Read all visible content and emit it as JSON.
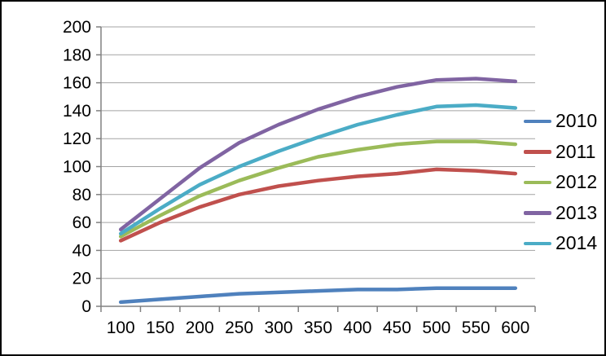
{
  "chart_data": {
    "type": "line",
    "title": "",
    "xlabel": "",
    "ylabel": "",
    "categories": [
      100,
      150,
      200,
      250,
      300,
      350,
      400,
      450,
      500,
      550,
      600
    ],
    "x_tick_labels": [
      "100",
      "150",
      "200",
      "250",
      "300",
      "350",
      "400",
      "450",
      "500",
      "550",
      "600"
    ],
    "y_tick_labels": [
      "0",
      "20",
      "40",
      "60",
      "80",
      "100",
      "120",
      "140",
      "160",
      "180",
      "200"
    ],
    "ylim": [
      0,
      200
    ],
    "y_step": 20,
    "grid": "horizontal",
    "legend_position": "right",
    "series": [
      {
        "name": "2010",
        "color": "#4F81BD",
        "values": [
          3,
          5,
          7,
          9,
          10,
          11,
          12,
          12,
          13,
          13,
          13
        ]
      },
      {
        "name": "2011",
        "color": "#C0504D",
        "values": [
          47,
          60,
          71,
          80,
          86,
          90,
          93,
          95,
          98,
          97,
          95
        ]
      },
      {
        "name": "2012",
        "color": "#9BBB59",
        "values": [
          50,
          65,
          79,
          90,
          99,
          107,
          112,
          116,
          118,
          118,
          116
        ]
      },
      {
        "name": "2013",
        "color": "#8064A2",
        "values": [
          55,
          77,
          99,
          117,
          130,
          141,
          150,
          157,
          162,
          163,
          161
        ]
      },
      {
        "name": "2014",
        "color": "#4BACC6",
        "values": [
          52,
          70,
          87,
          100,
          111,
          121,
          130,
          137,
          143,
          144,
          142
        ]
      }
    ],
    "colors": {
      "background": "#FFFFFF",
      "border": "#000000",
      "gridline": "#A3A3A3",
      "axis": "#808080",
      "tick": "#808080",
      "label_text": "#000000"
    }
  }
}
